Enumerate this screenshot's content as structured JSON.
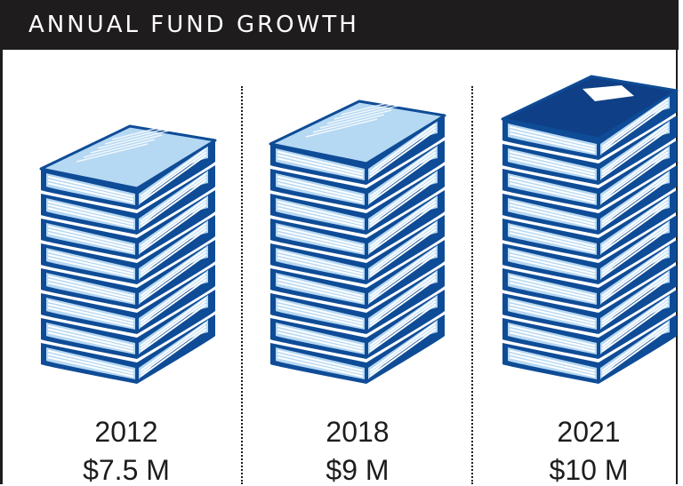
{
  "header": {
    "title": "ANNUAL FUND GROWTH"
  },
  "chart_data": {
    "type": "bar",
    "title": "ANNUAL FUND GROWTH",
    "categories": [
      "2012",
      "2018",
      "2021"
    ],
    "values": [
      7.5,
      9,
      10
    ],
    "value_labels": [
      "$7.5 M",
      "$9 M",
      "$10 M"
    ],
    "unit": "M",
    "pictograph": "book-stack",
    "book_counts": [
      8,
      9,
      10
    ],
    "grid": false,
    "legend": "none"
  },
  "colors": {
    "header_bg": "#1e1c1c",
    "header_text": "#ffffff",
    "book_navy": "#0f4c97",
    "book_light": "#b5d8f3",
    "book_pages": "#ffffff",
    "top_book_cover": "#0f3f86",
    "label_text": "#1e1c1c"
  }
}
